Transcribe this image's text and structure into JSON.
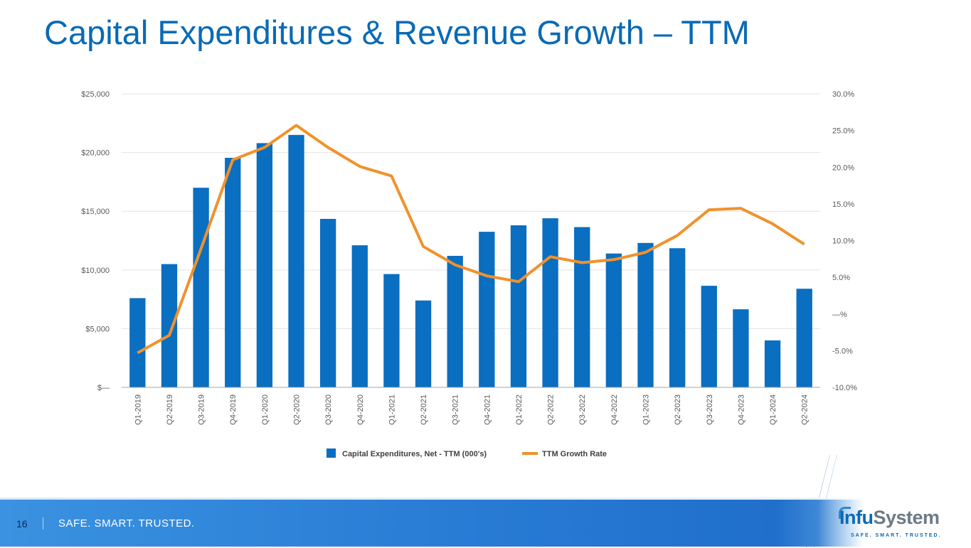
{
  "slide": {
    "title": "Capital Expenditures & Revenue Growth – TTM",
    "page_number": "16",
    "footer_tagline": "SAFE. SMART. TRUSTED.",
    "logo": {
      "name_part1": "Infu",
      "name_part2": "System",
      "tagline": "SAFE. SMART. TRUSTED."
    }
  },
  "colors": {
    "title": "#0a6ab5",
    "bar": "#0a6ec1",
    "line": "#f0922b",
    "grid": "#e3e3e3",
    "axis": "#a6a6a6"
  },
  "chart_data": {
    "type": "bar",
    "combo": "bar+line (dual axis)",
    "title": "",
    "xlabel": "",
    "ylabel": "",
    "categories": [
      "Q1-2019",
      "Q2-2019",
      "Q3-2019",
      "Q4-2019",
      "Q1-2020",
      "Q2-2020",
      "Q3-2020",
      "Q4-2020",
      "Q1-2021",
      "Q2-2021",
      "Q3-2021",
      "Q4-2021",
      "Q1-2022",
      "Q2-2022",
      "Q3-2022",
      "Q4-2022",
      "Q1-2023",
      "Q2-2023",
      "Q3-2023",
      "Q4-2023",
      "Q1-2024",
      "Q2-2024"
    ],
    "series": [
      {
        "name": "Capital Expenditures, Net - TTM (000's)",
        "type": "bar",
        "axis": "left",
        "values": [
          7600,
          10500,
          17000,
          19550,
          20800,
          21500,
          14350,
          12100,
          9650,
          7400,
          11200,
          13250,
          13800,
          14400,
          13650,
          11400,
          12300,
          11850,
          8650,
          6650,
          4000,
          8400
        ]
      },
      {
        "name": "TTM Growth Rate",
        "type": "line",
        "axis": "right",
        "unit": "%",
        "values": [
          -5.3,
          -2.9,
          8.9,
          21.0,
          22.7,
          25.7,
          22.7,
          20.1,
          18.8,
          9.2,
          6.7,
          5.2,
          4.4,
          7.8,
          7.0,
          7.4,
          8.4,
          10.7,
          14.2,
          14.4,
          12.3,
          9.5
        ]
      }
    ],
    "left_axis": {
      "ylim": [
        0,
        25000
      ],
      "ticks": [
        0,
        5000,
        10000,
        15000,
        20000,
        25000
      ],
      "tick_labels": [
        "$—",
        "$5,000",
        "$10,000",
        "$15,000",
        "$20,000",
        "$25,000"
      ]
    },
    "right_axis": {
      "ylim": [
        -10,
        30
      ],
      "ticks": [
        -10,
        -5,
        0,
        5,
        10,
        15,
        20,
        25,
        30
      ],
      "tick_labels": [
        "-10.0%",
        "-5.0%",
        "—%",
        "5.0%",
        "10.0%",
        "15.0%",
        "20.0%",
        "25.0%",
        "30.0%"
      ]
    },
    "grid": true,
    "legend": {
      "position": "bottom",
      "entries": [
        "Capital Expenditures, Net - TTM (000's)",
        "TTM Growth Rate"
      ]
    }
  }
}
